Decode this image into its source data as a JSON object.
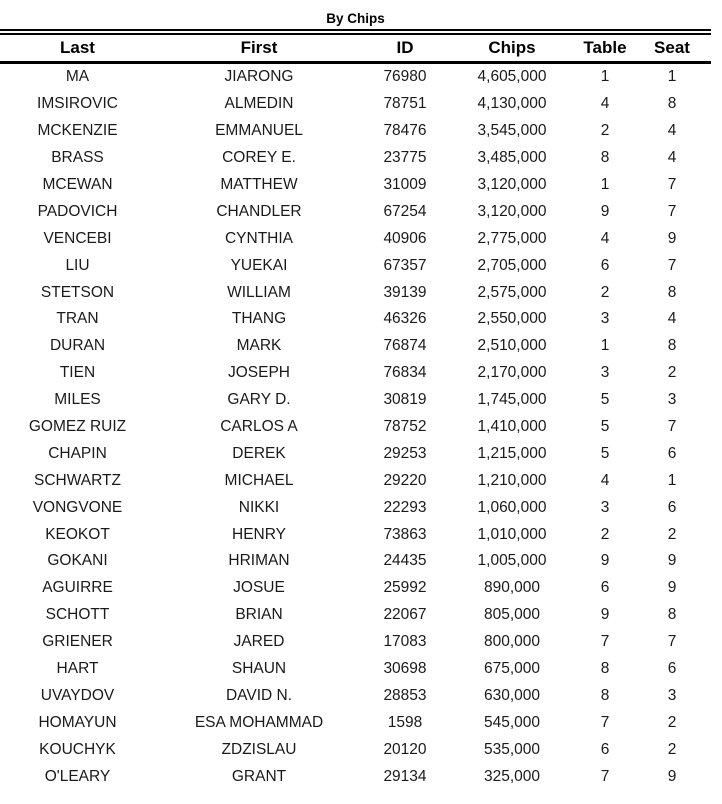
{
  "title": "By Chips",
  "table": {
    "columns": [
      "Last",
      "First",
      "ID",
      "Chips",
      "Table",
      "Seat"
    ],
    "rows": [
      [
        "MA",
        "JIARONG",
        "76980",
        "4,605,000",
        "1",
        "1"
      ],
      [
        "IMSIROVIC",
        "ALMEDIN",
        "78751",
        "4,130,000",
        "4",
        "8"
      ],
      [
        "MCKENZIE",
        "EMMANUEL",
        "78476",
        "3,545,000",
        "2",
        "4"
      ],
      [
        "BRASS",
        "COREY E.",
        "23775",
        "3,485,000",
        "8",
        "4"
      ],
      [
        "MCEWAN",
        "MATTHEW",
        "31009",
        "3,120,000",
        "1",
        "7"
      ],
      [
        "PADOVICH",
        "CHANDLER",
        "67254",
        "3,120,000",
        "9",
        "7"
      ],
      [
        "VENCEBI",
        "CYNTHIA",
        "40906",
        "2,775,000",
        "4",
        "9"
      ],
      [
        "LIU",
        "YUEKAI",
        "67357",
        "2,705,000",
        "6",
        "7"
      ],
      [
        "STETSON",
        "WILLIAM",
        "39139",
        "2,575,000",
        "2",
        "8"
      ],
      [
        "TRAN",
        "THANG",
        "46326",
        "2,550,000",
        "3",
        "4"
      ],
      [
        "DURAN",
        "MARK",
        "76874",
        "2,510,000",
        "1",
        "8"
      ],
      [
        "TIEN",
        "JOSEPH",
        "76834",
        "2,170,000",
        "3",
        "2"
      ],
      [
        "MILES",
        "GARY D.",
        "30819",
        "1,745,000",
        "5",
        "3"
      ],
      [
        "GOMEZ RUIZ",
        "CARLOS A",
        "78752",
        "1,410,000",
        "5",
        "7"
      ],
      [
        "CHAPIN",
        "DEREK",
        "29253",
        "1,215,000",
        "5",
        "6"
      ],
      [
        "SCHWARTZ",
        "MICHAEL",
        "29220",
        "1,210,000",
        "4",
        "1"
      ],
      [
        "VONGVONE",
        "NIKKI",
        "22293",
        "1,060,000",
        "3",
        "6"
      ],
      [
        "KEOKOT",
        "HENRY",
        "73863",
        "1,010,000",
        "2",
        "2"
      ],
      [
        "GOKANI",
        "HRIMAN",
        "24435",
        "1,005,000",
        "9",
        "9"
      ],
      [
        "AGUIRRE",
        "JOSUE",
        "25992",
        "890,000",
        "6",
        "9"
      ],
      [
        "SCHOTT",
        "BRIAN",
        "22067",
        "805,000",
        "9",
        "8"
      ],
      [
        "GRIENER",
        "JARED",
        "17083",
        "800,000",
        "7",
        "7"
      ],
      [
        "HART",
        "SHAUN",
        "30698",
        "675,000",
        "8",
        "6"
      ],
      [
        "UVAYDOV",
        "DAVID N.",
        "28853",
        "630,000",
        "8",
        "3"
      ],
      [
        "HOMAYUN",
        "ESA MOHAMMAD",
        "1598",
        "545,000",
        "7",
        "2"
      ],
      [
        "KOUCHYK",
        "ZDZISLAU",
        "20120",
        "535,000",
        "6",
        "2"
      ],
      [
        "O'LEARY",
        "GRANT",
        "29134",
        "325,000",
        "7",
        "9"
      ]
    ]
  }
}
